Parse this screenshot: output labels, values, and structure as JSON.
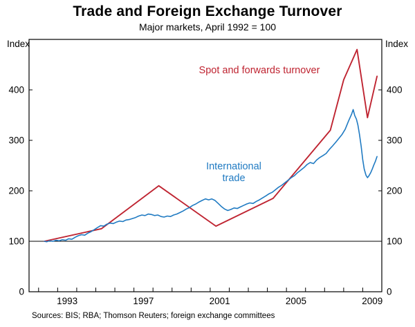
{
  "page": {
    "title": "Trade and Foreign Exchange Turnover",
    "subtitle": "Major markets, April 1992 = 100",
    "source": "Sources: BIS; RBA; Thomson Reuters; foreign exchange committees"
  },
  "chart_data": {
    "type": "line",
    "title": "Trade and Foreign Exchange Turnover",
    "subtitle": "Major markets, April 1992 = 100",
    "ylabel_left": "Index",
    "ylabel_right": "Index",
    "ylim": [
      0,
      500
    ],
    "yticks": [
      0,
      100,
      200,
      300,
      400
    ],
    "xlim": [
      1991.5,
      2010.0
    ],
    "xtick_labels": [
      1993,
      1997,
      2001,
      2005,
      2009
    ],
    "minor_xtick_every_year": true,
    "baseline": 100,
    "grid": false,
    "legend_position": "inline-annotations",
    "series": [
      {
        "name": "Spot and forwards turnover",
        "color": "#bf2431",
        "x": [
          1992.3,
          1995.3,
          1998.3,
          2001.3,
          2004.3,
          2007.3,
          2008.0,
          2008.7,
          2009.25,
          2009.75
        ],
        "values": [
          100,
          125,
          210,
          130,
          185,
          320,
          420,
          480,
          345,
          427
        ]
      },
      {
        "name": "International trade",
        "color": "#1f7ac2",
        "x": [
          1992.3,
          1992.42,
          1992.58,
          1992.75,
          1992.92,
          1993.08,
          1993.25,
          1993.42,
          1993.58,
          1993.75,
          1993.92,
          1994.08,
          1994.25,
          1994.42,
          1994.58,
          1994.75,
          1994.92,
          1995.08,
          1995.25,
          1995.42,
          1995.58,
          1995.75,
          1995.92,
          1996.08,
          1996.25,
          1996.42,
          1996.58,
          1996.75,
          1996.92,
          1997.08,
          1997.25,
          1997.42,
          1997.58,
          1997.75,
          1997.92,
          1998.08,
          1998.25,
          1998.42,
          1998.58,
          1998.75,
          1998.92,
          1999.08,
          1999.25,
          1999.42,
          1999.58,
          1999.75,
          1999.92,
          2000.08,
          2000.25,
          2000.42,
          2000.58,
          2000.75,
          2000.92,
          2001.08,
          2001.25,
          2001.42,
          2001.58,
          2001.75,
          2001.92,
          2002.08,
          2002.25,
          2002.42,
          2002.58,
          2002.75,
          2002.92,
          2003.08,
          2003.25,
          2003.42,
          2003.58,
          2003.75,
          2003.92,
          2004.08,
          2004.25,
          2004.42,
          2004.58,
          2004.75,
          2004.92,
          2005.08,
          2005.25,
          2005.42,
          2005.58,
          2005.75,
          2005.92,
          2006.08,
          2006.25,
          2006.42,
          2006.58,
          2006.75,
          2006.92,
          2007.08,
          2007.25,
          2007.42,
          2007.58,
          2007.75,
          2007.92,
          2008.08,
          2008.25,
          2008.42,
          2008.5,
          2008.58,
          2008.67,
          2008.75,
          2008.83,
          2008.92,
          2009.0,
          2009.08,
          2009.17,
          2009.25,
          2009.33,
          2009.42,
          2009.5,
          2009.58,
          2009.67,
          2009.75
        ],
        "values": [
          100,
          99,
          101,
          100,
          102,
          101,
          103,
          102,
          105,
          104,
          108,
          111,
          113,
          112,
          116,
          119,
          123,
          127,
          131,
          130,
          134,
          136,
          135,
          138,
          140,
          139,
          142,
          143,
          145,
          147,
          150,
          152,
          151,
          154,
          153,
          151,
          152,
          149,
          148,
          150,
          149,
          152,
          154,
          157,
          160,
          164,
          167,
          171,
          174,
          178,
          181,
          184,
          182,
          184,
          181,
          175,
          169,
          164,
          161,
          163,
          166,
          165,
          168,
          171,
          174,
          176,
          175,
          179,
          182,
          186,
          190,
          194,
          197,
          202,
          207,
          211,
          216,
          221,
          226,
          230,
          236,
          241,
          246,
          252,
          256,
          254,
          261,
          266,
          270,
          274,
          282,
          289,
          296,
          304,
          312,
          322,
          338,
          352,
          361,
          349,
          342,
          330,
          312,
          288,
          262,
          243,
          231,
          226,
          230,
          236,
          243,
          251,
          259,
          268
        ]
      }
    ]
  }
}
